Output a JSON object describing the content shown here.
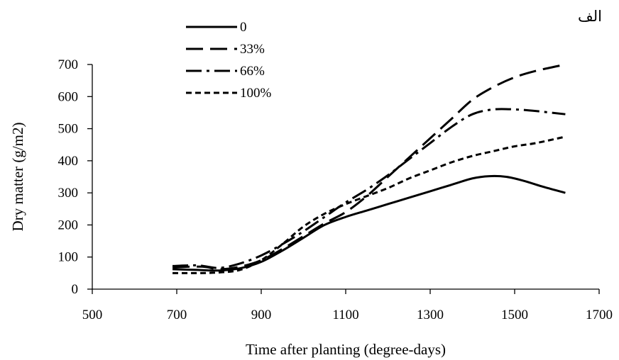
{
  "corner_label": "الف",
  "chart_data": {
    "type": "line",
    "title": "",
    "xlabel": "Time after planting (degree-days)",
    "ylabel": "Dry matter (g/m2)",
    "xlim": [
      500,
      1700
    ],
    "ylim": [
      0,
      700
    ],
    "xticks": [
      500,
      700,
      900,
      1100,
      1300,
      1500,
      1700
    ],
    "yticks": [
      0,
      100,
      200,
      300,
      400,
      500,
      600,
      700
    ],
    "grid": false,
    "legend_position": "top-left",
    "series": [
      {
        "name": "0",
        "dash": "solid",
        "points": [
          [
            690,
            62
          ],
          [
            750,
            60
          ],
          [
            800,
            58
          ],
          [
            850,
            65
          ],
          [
            900,
            85
          ],
          [
            950,
            120
          ],
          [
            1000,
            160
          ],
          [
            1050,
            200
          ],
          [
            1100,
            225
          ],
          [
            1150,
            245
          ],
          [
            1200,
            265
          ],
          [
            1250,
            285
          ],
          [
            1300,
            305
          ],
          [
            1350,
            325
          ],
          [
            1400,
            345
          ],
          [
            1440,
            352
          ],
          [
            1480,
            350
          ],
          [
            1520,
            338
          ],
          [
            1570,
            318
          ],
          [
            1620,
            300
          ]
        ]
      },
      {
        "name": "33%",
        "dash": "long-dash",
        "points": [
          [
            690,
            68
          ],
          [
            760,
            70
          ],
          [
            800,
            62
          ],
          [
            850,
            70
          ],
          [
            900,
            90
          ],
          [
            950,
            125
          ],
          [
            1000,
            165
          ],
          [
            1050,
            205
          ],
          [
            1100,
            240
          ],
          [
            1150,
            290
          ],
          [
            1200,
            350
          ],
          [
            1250,
            410
          ],
          [
            1300,
            470
          ],
          [
            1350,
            530
          ],
          [
            1400,
            590
          ],
          [
            1450,
            630
          ],
          [
            1500,
            660
          ],
          [
            1550,
            680
          ],
          [
            1620,
            700
          ]
        ]
      },
      {
        "name": "66%",
        "dash": "dash-dot",
        "points": [
          [
            690,
            72
          ],
          [
            750,
            74
          ],
          [
            800,
            66
          ],
          [
            850,
            80
          ],
          [
            900,
            105
          ],
          [
            950,
            140
          ],
          [
            1000,
            180
          ],
          [
            1050,
            225
          ],
          [
            1100,
            270
          ],
          [
            1150,
            310
          ],
          [
            1200,
            355
          ],
          [
            1250,
            405
          ],
          [
            1300,
            455
          ],
          [
            1350,
            505
          ],
          [
            1400,
            545
          ],
          [
            1450,
            560
          ],
          [
            1500,
            560
          ],
          [
            1550,
            555
          ],
          [
            1620,
            545
          ]
        ]
      },
      {
        "name": "100%",
        "dash": "short-dash",
        "points": [
          [
            690,
            50
          ],
          [
            750,
            50
          ],
          [
            800,
            52
          ],
          [
            850,
            60
          ],
          [
            900,
            90
          ],
          [
            950,
            140
          ],
          [
            1000,
            195
          ],
          [
            1050,
            235
          ],
          [
            1100,
            265
          ],
          [
            1150,
            290
          ],
          [
            1200,
            315
          ],
          [
            1250,
            345
          ],
          [
            1300,
            370
          ],
          [
            1350,
            395
          ],
          [
            1400,
            415
          ],
          [
            1450,
            430
          ],
          [
            1500,
            445
          ],
          [
            1550,
            455
          ],
          [
            1620,
            475
          ]
        ]
      }
    ]
  }
}
